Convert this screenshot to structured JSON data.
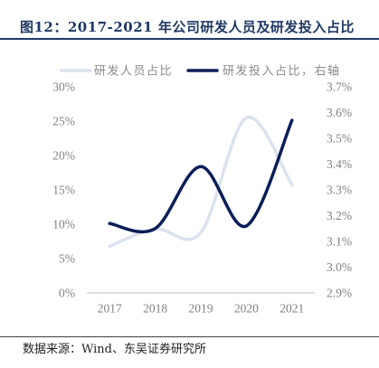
{
  "title": "图12：2017-2021 年公司研发人员及研发投入占比",
  "source": "数据来源：Wind、东吴证券研究所",
  "colors": {
    "title": "#1f3864",
    "rule": "#1f3864",
    "axis_text": "#808080",
    "axis_line": "#bfbfbf"
  },
  "chart_data": {
    "type": "line",
    "smooth": true,
    "categories": [
      "2017",
      "2018",
      "2019",
      "2020",
      "2021"
    ],
    "series": [
      {
        "name": "研发人员占比",
        "axis": "left",
        "color": "#dae2ee",
        "values": [
          6.8,
          9.3,
          8.8,
          25.5,
          15.7
        ]
      },
      {
        "name": "研发投入占比，右轴",
        "axis": "right",
        "color": "#0b1d58",
        "values": [
          3.17,
          3.15,
          3.39,
          3.16,
          3.57
        ]
      }
    ],
    "y_left": {
      "range": [
        0,
        30
      ],
      "ticks": [
        "30%",
        "25%",
        "20%",
        "15%",
        "10%",
        "5%",
        "0%"
      ]
    },
    "y_right": {
      "range": [
        2.9,
        3.7
      ],
      "ticks": [
        "3.7%",
        "3.6%",
        "3.5%",
        "3.4%",
        "3.3%",
        "3.2%",
        "3.1%",
        "3.0%",
        "2.9%"
      ]
    },
    "legend": "top",
    "grid": false
  }
}
